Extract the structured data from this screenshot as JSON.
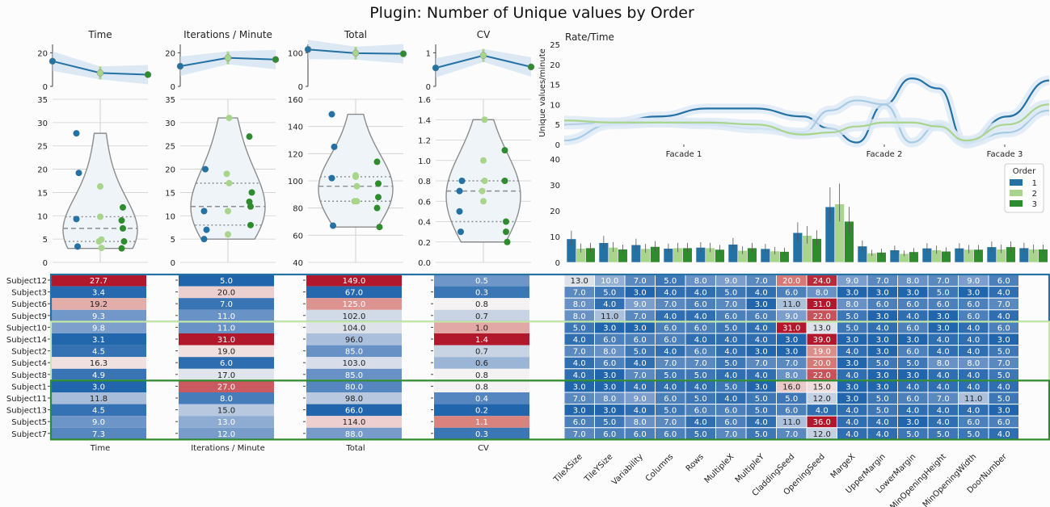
{
  "title": "Plugin: Number of Unique values by Order",
  "colors": {
    "order1": "#2471a3",
    "order2": "#a8d58b",
    "order3": "#2e8b2e",
    "heat_low": "#2166ac",
    "heat_high": "#b2182b"
  },
  "subjects": [
    "Subject12",
    "Subject3",
    "Subject6",
    "Subject9",
    "Subject10",
    "Subject14",
    "Subject2",
    "Subject4",
    "Subject8",
    "Subject1",
    "Subject11",
    "Subject13",
    "Subject5",
    "Subject7"
  ],
  "subject_order": [
    1,
    1,
    1,
    1,
    2,
    2,
    2,
    2,
    2,
    3,
    3,
    3,
    3,
    3
  ],
  "metrics": [
    {
      "label": "Time",
      "top_ylim": [
        0,
        25
      ],
      "top_ticks": [
        0,
        20
      ],
      "top_means": [
        15,
        8,
        7
      ],
      "violin_ylim": [
        0,
        35
      ],
      "violin_ticks": [
        0,
        5,
        10,
        15,
        20,
        25,
        30,
        35
      ],
      "values": [
        27.7,
        3.4,
        19.2,
        9.3,
        9.8,
        3.1,
        4.5,
        16.3,
        4.9,
        3.0,
        11.8,
        4.5,
        9.0,
        7.3
      ],
      "display": [
        "27.7",
        "3.4",
        "19.2",
        "9.3",
        "9.8",
        "3.1",
        "4.5",
        "16.3",
        "4.9",
        "3.0",
        "11.8",
        "4.5",
        "9.0",
        "7.3"
      ]
    },
    {
      "label": "Iterations / Minute",
      "top_ylim": [
        0,
        25
      ],
      "top_ticks": [
        0,
        20
      ],
      "top_means": [
        12,
        17,
        16
      ],
      "violin_ylim": [
        0,
        35
      ],
      "violin_ticks": [
        0,
        5,
        10,
        15,
        20,
        25,
        30,
        35
      ],
      "values": [
        5.0,
        20.0,
        7.0,
        11.0,
        11.0,
        31.0,
        19.0,
        6.0,
        17.0,
        27.0,
        8.0,
        15.0,
        13.0,
        12.0
      ],
      "display": [
        "5.0",
        "20.0",
        "7.0",
        "11.0",
        "11.0",
        "31.0",
        "19.0",
        "6.0",
        "17.0",
        "27.0",
        "8.0",
        "15.0",
        "13.0",
        "12.0"
      ]
    },
    {
      "label": "Total",
      "top_ylim": [
        0,
        125
      ],
      "top_ticks": [
        0,
        100
      ],
      "top_means": [
        110,
        99,
        97
      ],
      "violin_ylim": [
        40,
        160
      ],
      "violin_ticks": [
        40,
        60,
        80,
        100,
        120,
        140,
        160
      ],
      "values": [
        149.0,
        67.0,
        125.0,
        102.0,
        104.0,
        96.0,
        85.0,
        103.0,
        85.0,
        80.0,
        98.0,
        66.0,
        114.0,
        88.0
      ],
      "display": [
        "149.0",
        "67.0",
        "125.0",
        "102.0",
        "104.0",
        "96.0",
        "85.0",
        "103.0",
        "85.0",
        "80.0",
        "98.0",
        "66.0",
        "114.0",
        "88.0"
      ]
    },
    {
      "label": "CV",
      "top_ylim": [
        0,
        1.25
      ],
      "top_ticks": [
        0,
        1
      ],
      "top_means": [
        0.55,
        0.92,
        0.58
      ],
      "violin_ylim": [
        0,
        1.6
      ],
      "violin_ticks": [
        0.0,
        0.2,
        0.4,
        0.6,
        0.8,
        1.0,
        1.2,
        1.4,
        1.6
      ],
      "values": [
        0.5,
        0.3,
        0.8,
        0.7,
        1.0,
        1.4,
        0.7,
        0.6,
        0.8,
        0.8,
        0.4,
        0.2,
        1.1,
        0.3
      ],
      "display": [
        "0.5",
        "0.3",
        "0.8",
        "0.7",
        "1.0",
        "1.4",
        "0.7",
        "0.6",
        "0.8",
        "0.8",
        "0.4",
        "0.2",
        "1.1",
        "0.3"
      ]
    }
  ],
  "chart_data": [
    {
      "type": "line",
      "title": "Rate/Time",
      "ylabel": "Unique values/minute",
      "ylim": [
        0,
        25
      ],
      "yticks": [
        0,
        5,
        10,
        15,
        20,
        25
      ],
      "x_labels": [
        "Facade 1",
        "Facade 2",
        "Facade 3"
      ],
      "series": [
        {
          "name": "1",
          "values": [
            5,
            5.5,
            7,
            9,
            9,
            7,
            4,
            0.5,
            10,
            16.5,
            14,
            0.2,
            7,
            16
          ]
        },
        {
          "name": "2",
          "values": [
            1,
            5,
            5.5,
            5,
            4,
            3,
            8.5,
            11,
            10,
            0.5,
            5,
            0.5,
            3,
            8.5
          ]
        },
        {
          "name": "3",
          "values": [
            6,
            5.5,
            5.5,
            5.5,
            5,
            2.5,
            3,
            4.5,
            5.5,
            5.5,
            4.5,
            1,
            5,
            10
          ]
        }
      ]
    },
    {
      "type": "bar",
      "ylim": [
        0,
        40
      ],
      "yticks": [
        0,
        10,
        20,
        30,
        40
      ],
      "legend_title": "Order",
      "legend": [
        "1",
        "2",
        "3"
      ],
      "legend_position": "upper-right",
      "categories": [
        "TileXSize",
        "TileYSize",
        "Variability",
        "Columns",
        "Rows",
        "MultipleX",
        "MultipleY",
        "CladdingSeed",
        "OpeningSeed",
        "MargeX",
        "UpperMargin",
        "LowerMargin",
        "MinOpeningHeight",
        "MinOpeningWidth",
        "DoorNumber"
      ],
      "series": [
        {
          "name": "1",
          "values": [
            9.1,
            7.6,
            6.8,
            5.4,
            5.8,
            7.0,
            5.3,
            11.5,
            21.5,
            6.3,
            4.8,
            5.5,
            5.5,
            6.0,
            5.6
          ]
        },
        {
          "name": "2",
          "values": [
            5.4,
            5.8,
            5.3,
            5.6,
            5.6,
            4.6,
            4.4,
            10.4,
            22.6,
            3.6,
            3.4,
            4.8,
            5.0,
            5.1,
            5.1
          ]
        },
        {
          "name": "3",
          "values": [
            5.6,
            5.1,
            6.1,
            5.6,
            5.0,
            5.6,
            4.2,
            9.2,
            15.9,
            3.9,
            4.1,
            4.3,
            5.0,
            6.0,
            5.1
          ]
        }
      ]
    },
    {
      "type": "heatmap",
      "columns": [
        "TileXSize",
        "TileYSize",
        "Variability",
        "Columns",
        "Rows",
        "MultipleX",
        "MultipleY",
        "CladdingSeed",
        "OpeningSeed",
        "MargeX",
        "UpperMargin",
        "LowerMargin",
        "MinOpeningHeight",
        "MinOpeningWidth",
        "DoorNumber"
      ],
      "rows": [
        "Subject12",
        "Subject3",
        "Subject6",
        "Subject9",
        "Subject10",
        "Subject14",
        "Subject2",
        "Subject4",
        "Subject8",
        "Subject1",
        "Subject11",
        "Subject13",
        "Subject5",
        "Subject7"
      ],
      "values": [
        [
          13,
          10,
          7,
          5,
          8,
          9,
          7,
          20,
          24,
          9,
          7,
          8,
          7,
          9,
          6
        ],
        [
          7,
          5,
          3,
          4,
          4,
          5,
          4,
          6,
          8,
          3,
          3,
          3,
          5,
          3,
          4
        ],
        [
          8,
          4,
          9,
          7,
          6,
          7,
          3,
          11,
          31,
          8,
          6,
          6,
          6,
          6,
          7
        ],
        [
          8,
          11,
          7,
          4,
          4,
          6,
          6,
          9,
          22,
          5,
          3,
          4,
          3,
          6,
          4
        ],
        [
          5,
          3,
          3,
          6,
          6,
          5,
          4,
          31,
          13,
          5,
          4,
          6,
          3,
          4,
          6
        ],
        [
          4,
          6,
          6,
          6,
          4,
          4,
          4,
          3,
          39,
          3,
          3,
          3,
          4,
          4,
          3
        ],
        [
          7,
          8,
          5,
          4,
          6,
          4,
          3,
          3,
          19,
          4,
          3,
          6,
          4,
          4,
          5
        ],
        [
          4,
          6,
          4,
          7,
          7,
          5,
          7,
          7,
          20,
          3,
          5,
          5,
          8,
          8,
          7
        ],
        [
          4,
          3,
          7,
          5,
          5,
          4,
          4,
          8,
          22,
          4,
          3,
          3,
          4,
          4,
          5
        ],
        [
          3,
          3,
          4,
          4,
          4,
          5,
          3,
          16,
          15,
          3,
          3,
          4,
          4,
          4,
          4
        ],
        [
          7,
          8,
          9,
          6,
          5,
          4,
          5,
          5,
          12,
          3,
          5,
          6,
          7,
          11,
          5
        ],
        [
          3,
          3,
          4,
          5,
          6,
          6,
          5,
          6,
          4,
          4,
          5,
          4,
          4,
          4,
          3
        ],
        [
          6,
          5,
          8,
          7,
          4,
          6,
          4,
          11,
          36,
          4,
          4,
          3,
          4,
          6,
          6
        ],
        [
          7,
          6,
          6,
          6,
          5,
          7,
          5,
          7,
          12,
          4,
          4,
          5,
          5,
          5,
          4
        ]
      ]
    }
  ]
}
